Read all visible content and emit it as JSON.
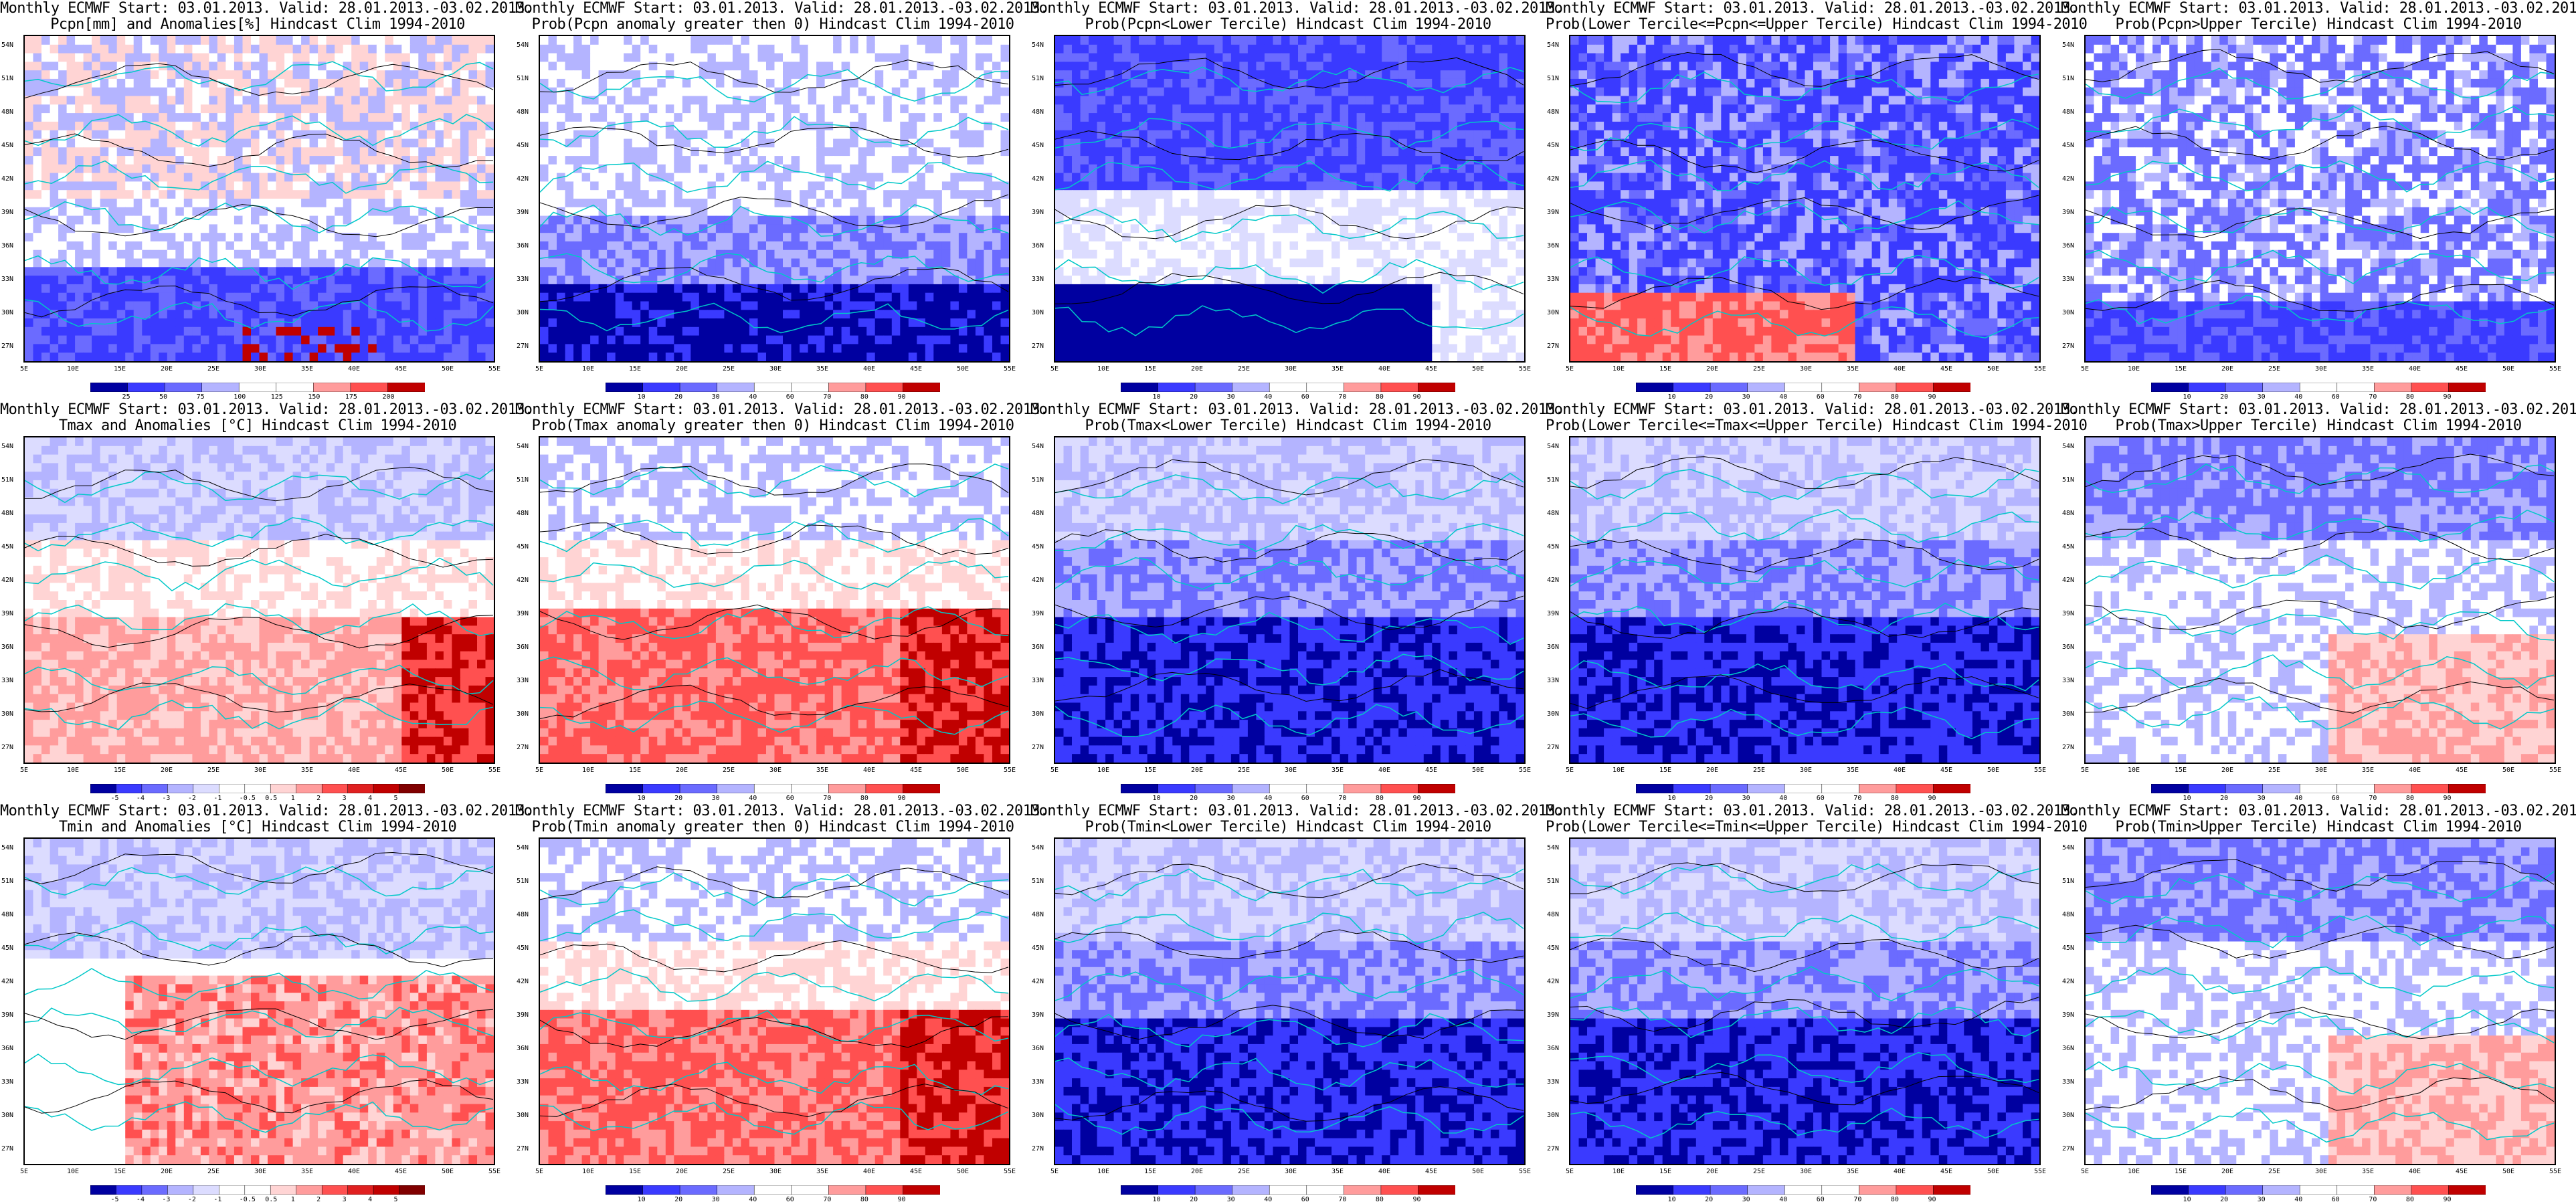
{
  "header_line": "Monthly ECMWF Start: 03.01.2013. Valid: 28.01.2013.-03.02.2013.",
  "lat_ticks": [
    "54N",
    "51N",
    "48N",
    "45N",
    "42N",
    "39N",
    "36N",
    "33N",
    "30N",
    "27N"
  ],
  "lon_ticks": [
    "5E",
    "10E",
    "15E",
    "20E",
    "25E",
    "30E",
    "35E",
    "40E",
    "45E",
    "50E",
    "55E"
  ],
  "colors": {
    "deep_blue": "#0000a0",
    "blue": "#3a3aff",
    "mid_blue": "#6b6bff",
    "light_blue": "#b4b4ff",
    "pale_blue": "#dcdcff",
    "white": "#ffffff",
    "pale_red": "#ffd4d4",
    "light_red": "#ff9c9c",
    "red": "#ff5050",
    "deep_red": "#c00000",
    "coast": "#00c8c8",
    "contour": "#000000"
  },
  "rows": [
    {
      "titles": [
        "Pcpn[mm] and Anomalies[%] Hindcast Clim 1994-2010",
        "Prob(Pcpn anomaly greater then 0) Hindcast Clim 1994-2010",
        "Prob(Pcpn<Lower Tercile) Hindcast Clim 1994-2010",
        "Prob(Lower Tercile<=Pcpn<=Upper Tercile) Hindcast Clim 1994-2010",
        "Prob(Pcpn>Upper Tercile) Hindcast Clim 1994-2010"
      ],
      "colorbars": [
        [
          "25",
          "50",
          "75",
          "100",
          "125",
          "150",
          "175",
          "200"
        ],
        [
          "10",
          "20",
          "30",
          "40",
          "60",
          "70",
          "80",
          "90"
        ],
        [
          "10",
          "20",
          "30",
          "40",
          "60",
          "70",
          "80",
          "90"
        ],
        [
          "10",
          "20",
          "30",
          "40",
          "60",
          "70",
          "80",
          "90"
        ],
        [
          "10",
          "20",
          "30",
          "40",
          "60",
          "70",
          "80",
          "90"
        ]
      ]
    },
    {
      "titles": [
        "Tmax and Anomalies [°C] Hindcast Clim 1994-2010",
        "Prob(Tmax anomaly greater then 0) Hindcast Clim 1994-2010",
        "Prob(Tmax<Lower Tercile) Hindcast Clim 1994-2010",
        "Prob(Lower Tercile<=Tmax<=Upper Tercile) Hindcast Clim 1994-2010",
        "Prob(Tmax>Upper Tercile) Hindcast Clim 1994-2010"
      ],
      "colorbars": [
        [
          "-5",
          "-4",
          "-3",
          "-2",
          "-1",
          "-0.5",
          "0.5",
          "1",
          "2",
          "3",
          "4",
          "5"
        ],
        [
          "10",
          "20",
          "30",
          "40",
          "60",
          "70",
          "80",
          "90"
        ],
        [
          "10",
          "20",
          "30",
          "40",
          "60",
          "70",
          "80",
          "90"
        ],
        [
          "10",
          "20",
          "30",
          "40",
          "60",
          "70",
          "80",
          "90"
        ],
        [
          "10",
          "20",
          "30",
          "40",
          "60",
          "70",
          "80",
          "90"
        ]
      ]
    },
    {
      "titles": [
        "Tmin and Anomalies [°C] Hindcast Clim 1994-2010",
        "Prob(Tmin anomaly greater then 0) Hindcast Clim 1994-2010",
        "Prob(Tmin<Lower Tercile) Hindcast Clim 1994-2010",
        "Prob(Lower Tercile<=Tmin<=Upper Tercile) Hindcast Clim 1994-2010",
        "Prob(Tmin>Upper Tercile) Hindcast Clim 1994-2010"
      ],
      "colorbars": [
        [
          "-5",
          "-4",
          "-3",
          "-2",
          "-1",
          "-0.5",
          "0.5",
          "1",
          "2",
          "3",
          "4",
          "5"
        ],
        [
          "10",
          "20",
          "30",
          "40",
          "60",
          "70",
          "80",
          "90"
        ],
        [
          "10",
          "20",
          "30",
          "40",
          "60",
          "70",
          "80",
          "90"
        ],
        [
          "10",
          "20",
          "30",
          "40",
          "60",
          "70",
          "80",
          "90"
        ],
        [
          "10",
          "20",
          "30",
          "40",
          "60",
          "70",
          "80",
          "90"
        ]
      ]
    }
  ]
}
